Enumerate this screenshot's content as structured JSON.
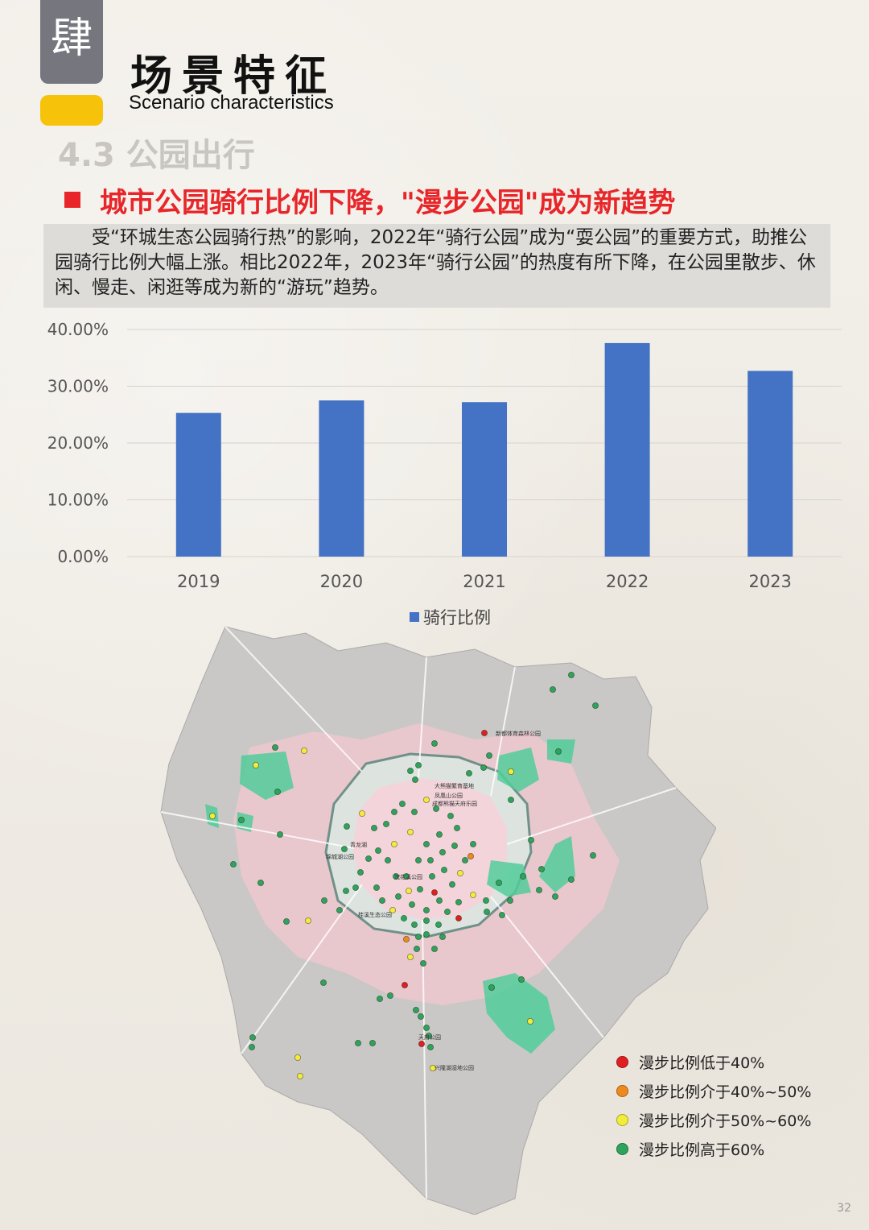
{
  "header": {
    "chapter_char": "肆",
    "title_cn": "场景特征",
    "title_en": "Scenario characteristics",
    "section": "4.3 公园出行",
    "subtitle": "城市公园骑行比例下降，\"漫步公园\"成为新趋势",
    "description": "受“环城生态公园骑行热”的影响，2022年“骑行公园”成为“耍公园”的重要方式，助推公园骑行比例大幅上涨。相比2022年，2023年“骑行公园”的热度有所下降，在公园里散步、休闲、慢走、闲逛等成为新的“游玩”趋势。"
  },
  "chart_data": {
    "type": "bar",
    "categories": [
      "2019",
      "2020",
      "2021",
      "2022",
      "2023"
    ],
    "series": [
      {
        "name": "骑行比例",
        "values": [
          25.3,
          27.5,
          27.2,
          37.6,
          32.7
        ],
        "color": "#4472c4"
      }
    ],
    "title": "",
    "xlabel": "",
    "ylabel": "",
    "ylim": [
      0,
      40
    ],
    "yticks": [
      "0.00%",
      "10.00%",
      "20.00%",
      "30.00%",
      "40.00%"
    ],
    "grid": true,
    "legend": "bottom-center"
  },
  "map": {
    "park_labels": [
      "新都体育森林公园",
      "大熊猫繁育基地",
      "凤凰山公园",
      "成都熊猫天府乐园",
      "青龙湖",
      "锦城湖公园",
      "桂溪生态公园",
      "浣花溪公园",
      "天府公园",
      "兴隆湖湿地公园"
    ],
    "legend": [
      {
        "label": "漫步比例低于40%",
        "color": "#e02020"
      },
      {
        "label": "漫步比例介于40%~50%",
        "color": "#ee8a1c"
      },
      {
        "label": "漫步比例介于50%~60%",
        "color": "#f4ec3a"
      },
      {
        "label": "漫步比例高于60%",
        "color": "#2ea45a"
      }
    ]
  },
  "page_number": "32"
}
